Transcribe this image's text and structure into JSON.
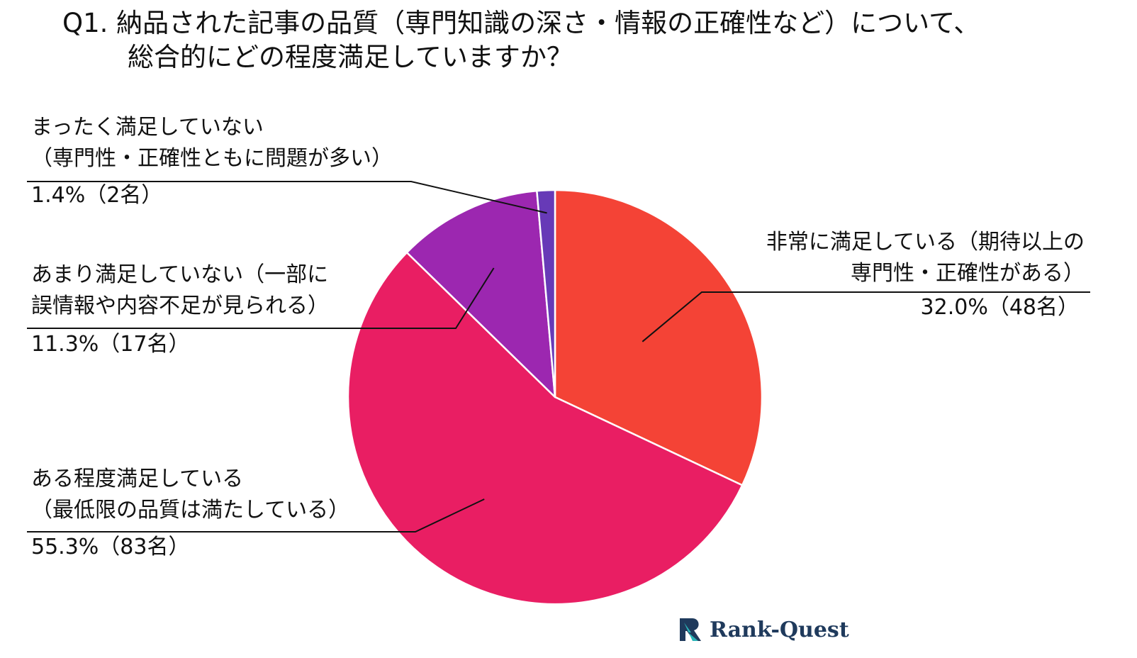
{
  "chart_data": {
    "type": "pie",
    "title": "Q1. 納品された記事の品質（専門知識の深さ・情報の正確性など）について、",
    "subtitle": "総合的にどの程度満足していますか？",
    "start_angle_deg": 0,
    "direction": "clockwise",
    "slices": [
      {
        "label_lines": [
          "非常に満足している（期待以上の",
          "専門性・正確性がある）"
        ],
        "value_text": "32.0%（48名）",
        "percent": 32.0,
        "count": 48,
        "color": "#f44336"
      },
      {
        "label_lines": [
          "ある程度満足している",
          "（最低限の品質は満たしている）"
        ],
        "value_text": "55.3%（83名）",
        "percent": 55.3,
        "count": 83,
        "color": "#e91e63"
      },
      {
        "label_lines": [
          "あまり満足していない（一部に",
          "誤情報や内容不足が見られる）"
        ],
        "value_text": "11.3%（17名）",
        "percent": 11.3,
        "count": 17,
        "color": "#9c27b0"
      },
      {
        "label_lines": [
          "まったく満足していない",
          "（専門性・正確性ともに問題が多い）"
        ],
        "value_text": "1.4%（2名）",
        "percent": 1.4,
        "count": 2,
        "color": "#673ab7"
      }
    ],
    "legend": "none"
  },
  "brand": {
    "logo_text": "Rank-Quest",
    "colors": {
      "dark": "#1f3a5c",
      "teal": "#2bb5b8"
    }
  }
}
